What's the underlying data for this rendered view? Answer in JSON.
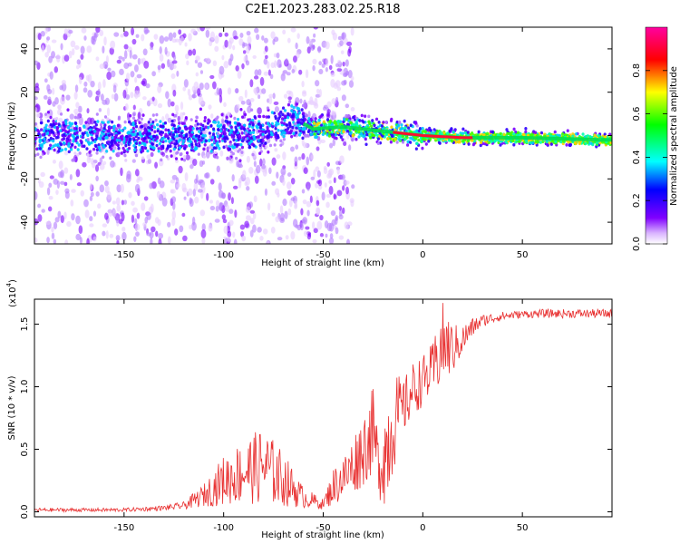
{
  "figure": {
    "title": "C2E1.2023.283.02.25.R18"
  },
  "chart_data": [
    {
      "type": "heatmap",
      "xlabel": "Height of straight line (km)",
      "ylabel": "Frequency (Hz)",
      "xlim": [
        -195,
        95
      ],
      "ylim": [
        -50,
        50
      ],
      "xticks": [
        "-150",
        "-100",
        "-50",
        "0",
        "50"
      ],
      "yticks": [
        "-40",
        "-20",
        "0",
        "20",
        "40"
      ],
      "colorbar": {
        "label": "Normalized spectral amplitude",
        "range": [
          0.0,
          1.0
        ],
        "ticks": [
          "0.0",
          "0.2",
          "0.4",
          "0.6",
          "0.8"
        ],
        "colormap": "rainbow (white → violet → blue → cyan → green → yellow → red → magenta)"
      },
      "ridge_frequency_hz": [
        [
          -190,
          0
        ],
        [
          -150,
          -1
        ],
        [
          -100,
          0
        ],
        [
          -80,
          2
        ],
        [
          -65,
          8
        ],
        [
          -55,
          3
        ],
        [
          -40,
          4
        ],
        [
          -20,
          2
        ],
        [
          0,
          0
        ],
        [
          20,
          -1
        ],
        [
          50,
          -1
        ],
        [
          90,
          -2
        ]
      ]
    },
    {
      "type": "line",
      "xlabel": "Height of straight line (km)",
      "ylabel": "SNR (10 * v/v)",
      "scale_note": "(x10",
      "scale_exp": "4",
      "xlim": [
        -195,
        95
      ],
      "ylim": [
        -0.04,
        1.7
      ],
      "xticks": [
        "-150",
        "-100",
        "-50",
        "0",
        "50"
      ],
      "yticks": [
        "0.0",
        "0.5",
        "1.0",
        "1.5"
      ],
      "series": [
        {
          "color": "#e83030",
          "envelope_x": [
            -195,
            -150,
            -130,
            -120,
            -110,
            -100,
            -90,
            -80,
            -70,
            -60,
            -50,
            -45,
            -38,
            -30,
            -25,
            -22,
            -18,
            -15,
            -10,
            -5,
            0,
            5,
            10,
            15,
            20,
            25,
            30,
            40,
            50,
            60,
            80,
            95
          ],
          "envelope_low": [
            0.0,
            0.0,
            0.01,
            0.02,
            0.04,
            0.05,
            0.06,
            0.06,
            0.04,
            0.03,
            0.02,
            0.05,
            0.1,
            0.2,
            0.3,
            0.1,
            0.02,
            0.3,
            0.6,
            0.75,
            0.85,
            0.9,
            1.0,
            1.1,
            1.25,
            1.4,
            1.48,
            1.53,
            1.55,
            1.55,
            1.55,
            1.55
          ],
          "envelope_high": [
            0.03,
            0.03,
            0.05,
            0.08,
            0.22,
            0.45,
            0.58,
            0.68,
            0.48,
            0.2,
            0.1,
            0.35,
            0.5,
            0.8,
            1.0,
            0.6,
            1.0,
            1.15,
            1.05,
            1.2,
            1.25,
            1.35,
            1.68,
            1.5,
            1.5,
            1.55,
            1.58,
            1.6,
            1.61,
            1.62,
            1.62,
            1.62
          ]
        }
      ]
    }
  ]
}
